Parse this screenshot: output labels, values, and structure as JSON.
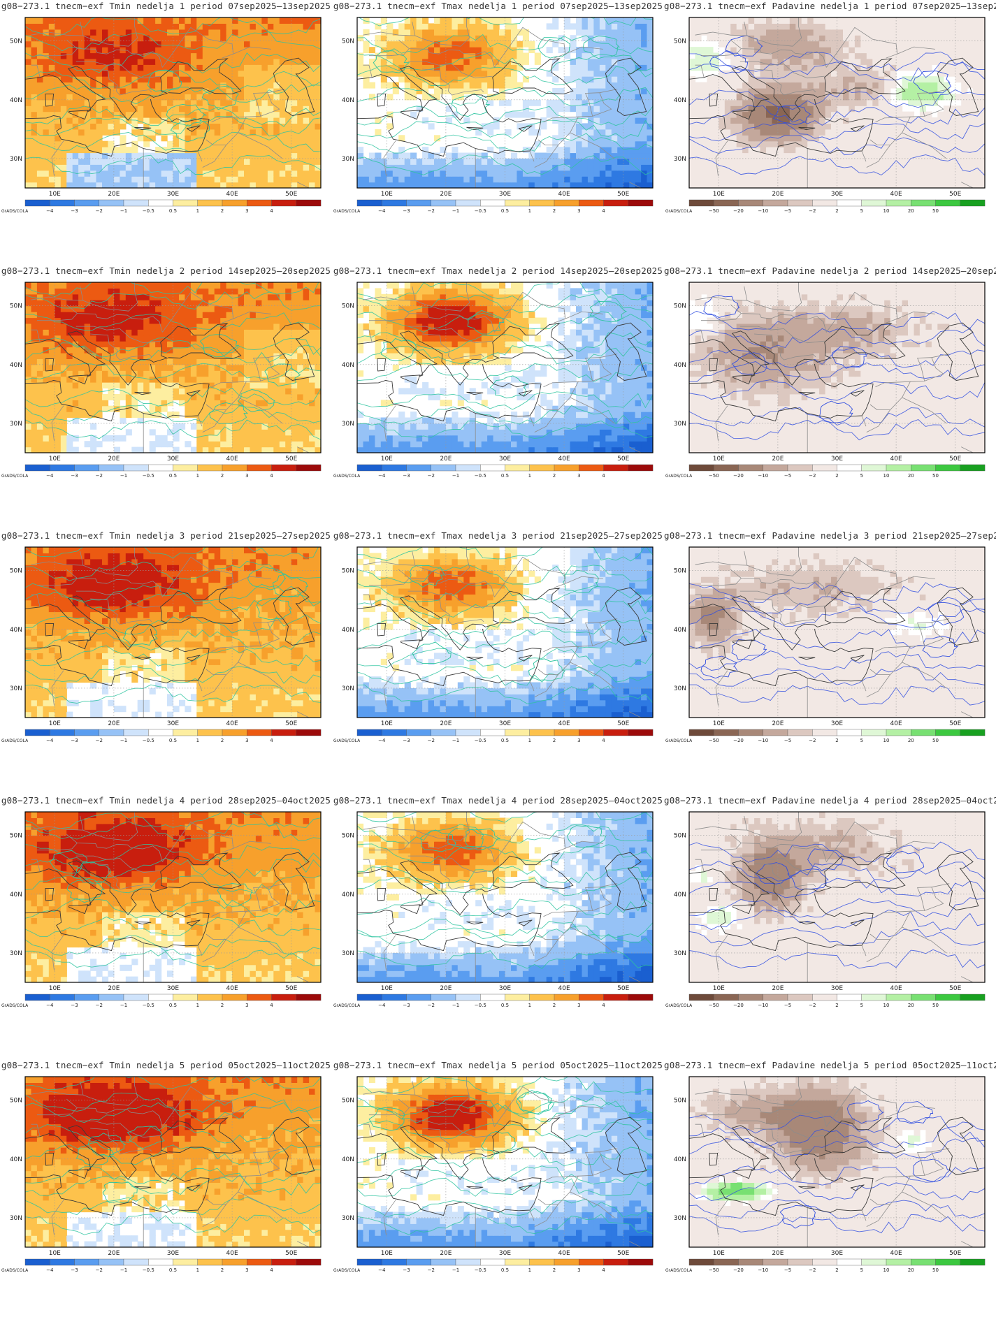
{
  "rows": [
    {
      "week": 1,
      "period": "07sep2025–13sep2025"
    },
    {
      "week": 2,
      "period": "14sep2025–20sep2025"
    },
    {
      "week": 3,
      "period": "21sep2025–27sep2025"
    },
    {
      "week": 4,
      "period": "28sep2025–04oct2025"
    },
    {
      "week": 5,
      "period": "05oct2025–11oct2025"
    }
  ],
  "columns": [
    {
      "variable": "Tmin",
      "legend": "temp"
    },
    {
      "variable": "Tmax",
      "legend": "temp"
    },
    {
      "variable": "Padavine",
      "legend": "precip"
    }
  ],
  "title_prefix": "g08−273.1  tnecm−exf",
  "title_week_word": "nedelja",
  "title_period_word": "period",
  "lat_labels": [
    "50N",
    "40N",
    "30N"
  ],
  "lon_labels": [
    "10E",
    "20E",
    "30E",
    "40E",
    "50E"
  ],
  "legend_credit": "GrADS/COLA",
  "legends": {
    "temp": {
      "labels": [
        "−4",
        "−3",
        "−2",
        "−1",
        "−0.5",
        "0.5",
        "1",
        "2",
        "3",
        "4"
      ],
      "colors": [
        "#1a5fd0",
        "#2e79e2",
        "#5a9df0",
        "#96c2f6",
        "#cfe3fb",
        "#ffffff",
        "#fdeea0",
        "#fdc24c",
        "#f7a02c",
        "#ec5a12",
        "#c81e0e",
        "#9c0a0a"
      ]
    },
    "precip": {
      "labels": [
        "−50",
        "−20",
        "−10",
        "−5",
        "−2",
        "2",
        "5",
        "10",
        "20",
        "50"
      ],
      "colors": [
        "#6e4a3a",
        "#8a6654",
        "#a88878",
        "#c4a89c",
        "#dcc8c0",
        "#f2e8e4",
        "#ffffff",
        "#dff7d6",
        "#b4f0a4",
        "#78e072",
        "#3cc840",
        "#18a020"
      ]
    }
  }
}
